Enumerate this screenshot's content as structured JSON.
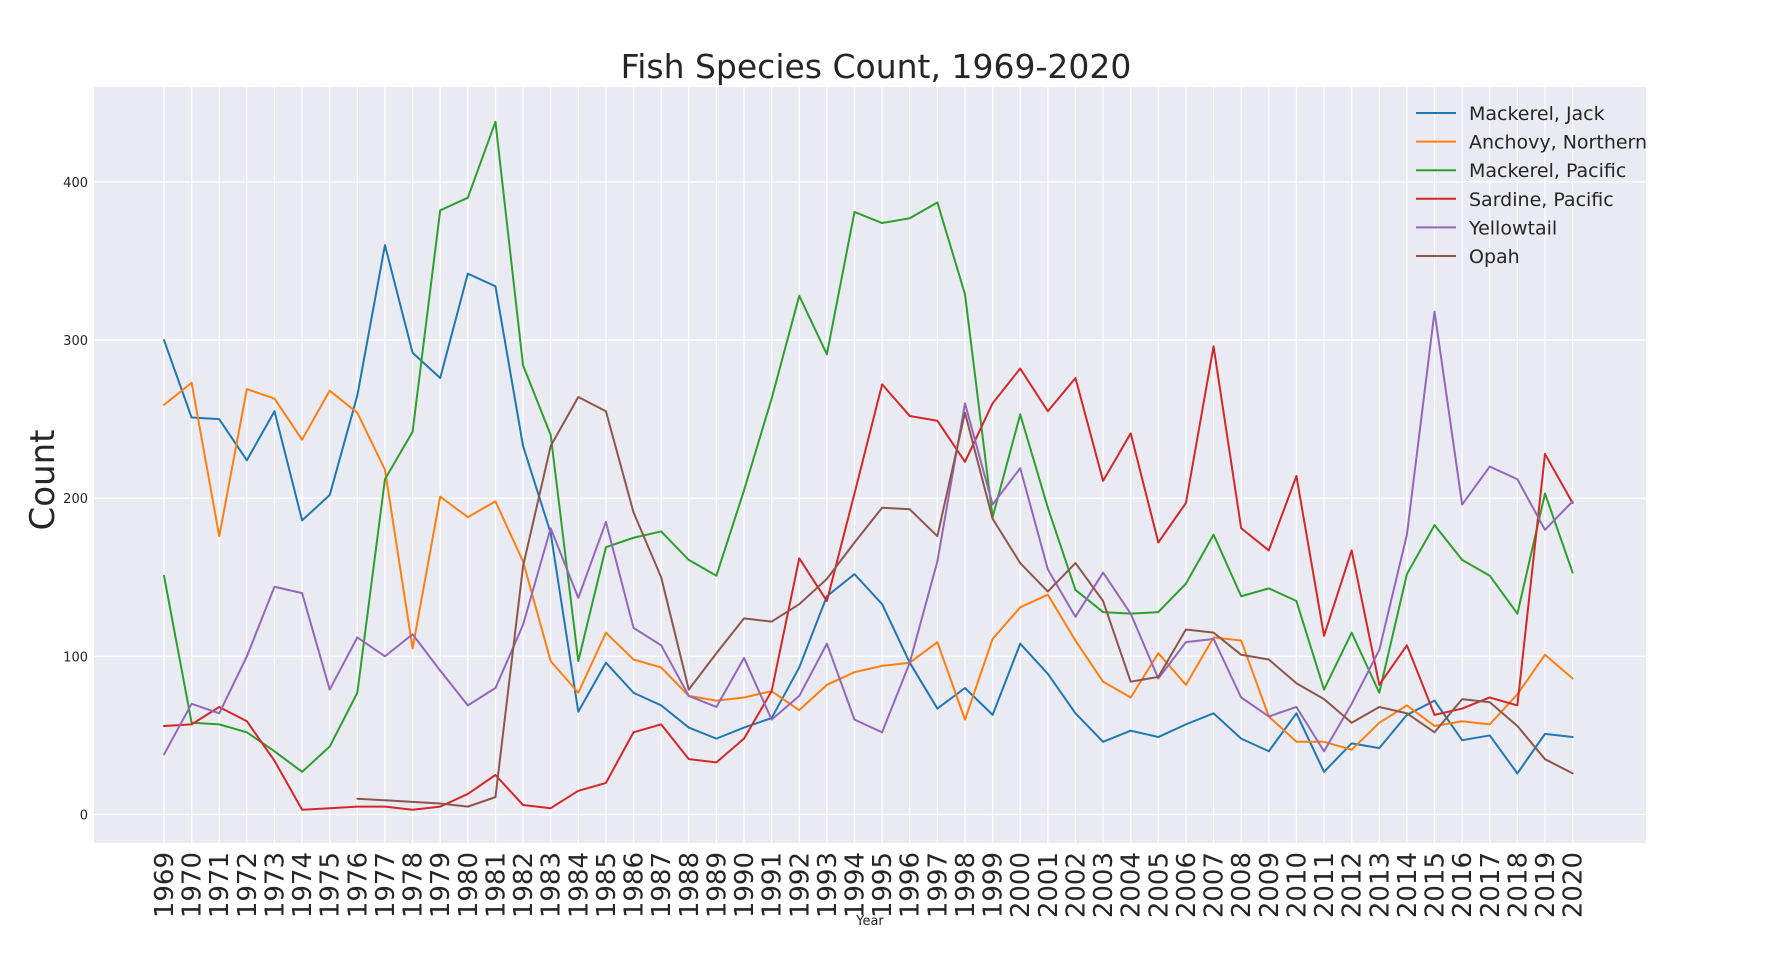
{
  "chart_data": {
    "type": "line",
    "title": "Fish Species Count, 1969-2020",
    "xlabel": "Year",
    "ylabel": "Count",
    "ylim": [
      -18,
      460
    ],
    "yticks": [
      0,
      100,
      200,
      300,
      400
    ],
    "grid": true,
    "legend_position": "top-right",
    "x": [
      1969,
      1970,
      1971,
      1972,
      1973,
      1974,
      1975,
      1976,
      1977,
      1978,
      1979,
      1980,
      1981,
      1982,
      1983,
      1984,
      1985,
      1986,
      1987,
      1988,
      1989,
      1990,
      1991,
      1992,
      1993,
      1994,
      1995,
      1996,
      1997,
      1998,
      1999,
      2000,
      2001,
      2002,
      2003,
      2004,
      2005,
      2006,
      2007,
      2008,
      2009,
      2010,
      2011,
      2012,
      2013,
      2014,
      2015,
      2016,
      2017,
      2018,
      2019,
      2020
    ],
    "series": [
      {
        "name": "Mackerel, Jack",
        "color": "#1f77b4",
        "values": [
          300,
          251,
          250,
          224,
          255,
          186,
          202,
          265,
          360,
          292,
          276,
          342,
          334,
          233,
          178,
          65,
          96,
          77,
          69,
          55,
          48,
          55,
          61,
          93,
          138,
          152,
          133,
          96,
          67,
          80,
          63,
          108,
          89,
          64,
          46,
          53,
          49,
          57,
          64,
          48,
          40,
          64,
          27,
          45,
          42,
          63,
          72,
          47,
          50,
          26,
          51,
          49
        ]
      },
      {
        "name": "Anchovy, Northern",
        "color": "#ff7f0e",
        "values": [
          259,
          273,
          176,
          269,
          263,
          237,
          268,
          254,
          218,
          105,
          201,
          188,
          198,
          160,
          97,
          77,
          115,
          98,
          93,
          75,
          72,
          74,
          78,
          66,
          82,
          90,
          94,
          96,
          109,
          60,
          111,
          131,
          139,
          110,
          84,
          74,
          102,
          82,
          112,
          110,
          62,
          46,
          46,
          41,
          58,
          69,
          56,
          59,
          57,
          76,
          101,
          86
        ]
      },
      {
        "name": "Mackerel, Pacific",
        "color": "#2ca02c",
        "values": [
          151,
          58,
          57,
          52,
          40,
          27,
          43,
          77,
          212,
          242,
          382,
          390,
          438,
          284,
          240,
          97,
          169,
          175,
          179,
          161,
          151,
          205,
          263,
          328,
          291,
          381,
          374,
          377,
          387,
          329,
          188,
          253,
          194,
          142,
          128,
          127,
          128,
          146,
          177,
          138,
          143,
          135,
          79,
          115,
          77,
          152,
          183,
          161,
          151,
          127,
          203,
          153
        ]
      },
      {
        "name": "Sardine, Pacific",
        "color": "#d62728",
        "values": [
          56,
          57,
          68,
          59,
          34,
          3,
          4,
          5,
          5,
          3,
          5,
          13,
          25,
          6,
          4,
          15,
          20,
          52,
          57,
          35,
          33,
          48,
          78,
          162,
          135,
          203,
          272,
          252,
          249,
          223,
          260,
          282,
          255,
          276,
          211,
          241,
          172,
          197,
          296,
          181,
          167,
          214,
          113,
          167,
          82,
          107,
          63,
          67,
          74,
          69,
          228,
          197
        ]
      },
      {
        "name": "Yellowtail",
        "color": "#9467bd",
        "values": [
          38,
          70,
          64,
          100,
          144,
          140,
          79,
          112,
          100,
          114,
          91,
          69,
          80,
          120,
          181,
          137,
          185,
          118,
          107,
          75,
          68,
          99,
          60,
          75,
          108,
          60,
          52,
          96,
          160,
          260,
          196,
          219,
          155,
          125,
          153,
          127,
          86,
          109,
          111,
          74,
          62,
          68,
          40,
          70,
          104,
          177,
          318,
          196,
          220,
          212,
          180,
          198
        ]
      },
      {
        "name": "Opah",
        "color": "#8c564b",
        "values": [
          null,
          null,
          null,
          null,
          null,
          null,
          null,
          10,
          9,
          8,
          7,
          5,
          11,
          157,
          233,
          264,
          255,
          191,
          150,
          79,
          102,
          124,
          122,
          133,
          149,
          172,
          194,
          193,
          176,
          254,
          187,
          159,
          141,
          159,
          135,
          84,
          87,
          117,
          115,
          101,
          98,
          83,
          73,
          58,
          68,
          64,
          52,
          73,
          71,
          56,
          35,
          26
        ]
      }
    ]
  }
}
